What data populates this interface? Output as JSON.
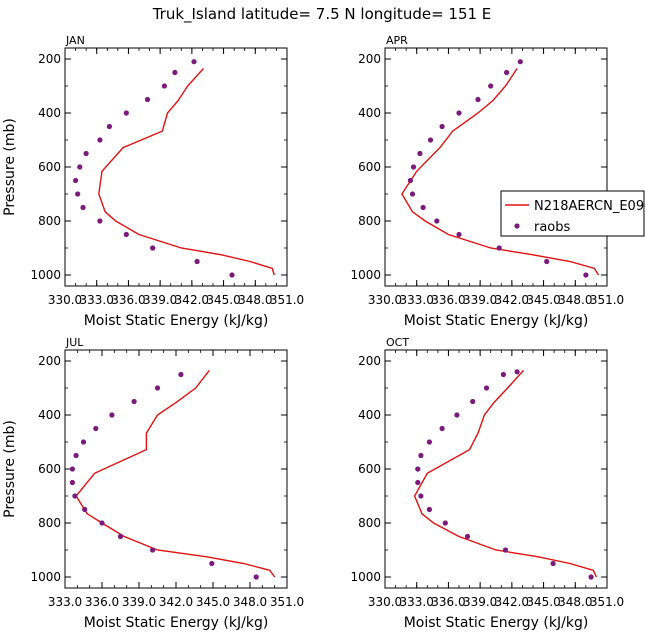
{
  "figure_title": "Truk_Island   latitude= 7.5 N longitude= 151 E",
  "colors": {
    "model": "#e01010",
    "obs": "#7a1a7a",
    "axis": "#000000"
  },
  "legend": {
    "model": "N218AERCN_E09",
    "obs": "raobs"
  },
  "chart_data": [
    {
      "type": "line",
      "title": "JAN",
      "xlabel": "Moist Static Energy (kJ/kg)",
      "ylabel": "Pressure (mb)",
      "xlim": [
        330,
        351
      ],
      "ylim": [
        1000,
        200
      ],
      "xticks": [
        "330.0",
        "333.0",
        "336.0",
        "339.0",
        "342.0",
        "345.0",
        "348.0",
        "351.0"
      ],
      "yticks": [
        "200",
        "400",
        "600",
        "800",
        "1000"
      ],
      "series": [
        {
          "name": "N218AERCN_E09",
          "x": [
            349.8,
            349.6,
            347.5,
            344.8,
            341.0,
            337.0,
            334.8,
            333.8,
            333.2,
            333.5,
            335.5,
            339.2,
            339.7,
            340.7,
            341.6,
            343.1
          ],
          "y": [
            1000,
            975,
            950,
            925,
            900,
            850,
            800,
            766,
            700,
            616,
            528,
            467,
            400,
            354,
            300,
            235
          ]
        },
        {
          "name": "raobs",
          "x": [
            345.8,
            342.5,
            338.3,
            335.8,
            333.3,
            331.7,
            331.2,
            331.0,
            331.4,
            332.0,
            333.3,
            334.2,
            335.8,
            337.8,
            339.4,
            340.4,
            342.2
          ],
          "y": [
            1000,
            950,
            900,
            850,
            800,
            750,
            700,
            650,
            600,
            550,
            500,
            450,
            400,
            350,
            300,
            250,
            210
          ]
        }
      ]
    },
    {
      "type": "line",
      "title": "APR",
      "xlabel": "Moist Static Energy (kJ/kg)",
      "ylabel": "",
      "xlim": [
        330,
        351
      ],
      "ylim": [
        1000,
        200
      ],
      "xticks": [
        "330.0",
        "333.0",
        "336.0",
        "339.0",
        "342.0",
        "345.0",
        "348.0",
        "351.0"
      ],
      "yticks": [
        "200",
        "400",
        "600",
        "800",
        "1000"
      ],
      "legend_location": "right",
      "series": [
        {
          "name": "N218AERCN_E09",
          "x": [
            350.2,
            349.8,
            347.5,
            344.0,
            340.0,
            336.0,
            333.8,
            332.6,
            331.6,
            333.0,
            335.2,
            336.4,
            338.8,
            340.2,
            341.4,
            342.5
          ],
          "y": [
            1000,
            975,
            950,
            925,
            900,
            850,
            800,
            766,
            700,
            616,
            528,
            467,
            400,
            354,
            300,
            235
          ]
        },
        {
          "name": "raobs",
          "x": [
            349.0,
            345.3,
            340.8,
            337.0,
            334.9,
            333.6,
            332.6,
            332.4,
            332.7,
            333.3,
            334.3,
            335.4,
            337.0,
            338.8,
            340.0,
            341.5,
            342.8
          ],
          "y": [
            1000,
            950,
            900,
            850,
            800,
            750,
            700,
            650,
            600,
            550,
            500,
            450,
            400,
            350,
            300,
            250,
            210
          ]
        }
      ]
    },
    {
      "type": "line",
      "title": "JUL",
      "xlabel": "Moist Static Energy (kJ/kg)",
      "ylabel": "Pressure (mb)",
      "xlim": [
        333,
        351
      ],
      "ylim": [
        1000,
        200
      ],
      "xticks": [
        "333.0",
        "336.0",
        "339.0",
        "342.0",
        "345.0",
        "348.0",
        "351.0"
      ],
      "yticks": [
        "200",
        "400",
        "600",
        "800",
        "1000"
      ],
      "series": [
        {
          "name": "N218AERCN_E09",
          "x": [
            350.0,
            349.6,
            347.5,
            344.5,
            340.5,
            337.8,
            336.0,
            334.8,
            333.9,
            335.4,
            339.6,
            339.6,
            340.5,
            342.0,
            343.6,
            344.7
          ],
          "y": [
            1000,
            975,
            950,
            925,
            900,
            850,
            800,
            766,
            700,
            616,
            528,
            467,
            400,
            354,
            300,
            235
          ]
        },
        {
          "name": "raobs",
          "x": [
            348.5,
            344.9,
            340.1,
            337.5,
            336.0,
            334.6,
            333.8,
            333.6,
            333.6,
            333.9,
            334.5,
            335.5,
            336.8,
            338.6,
            340.5,
            342.4
          ],
          "y": [
            1000,
            950,
            900,
            850,
            800,
            750,
            700,
            650,
            600,
            550,
            500,
            450,
            400,
            350,
            300,
            250
          ]
        }
      ]
    },
    {
      "type": "line",
      "title": "OCT",
      "xlabel": "Moist Static Energy (kJ/kg)",
      "ylabel": "",
      "xlim": [
        330,
        351
      ],
      "ylim": [
        1000,
        200
      ],
      "xticks": [
        "330.0",
        "333.0",
        "336.0",
        "339.0",
        "342.0",
        "345.0",
        "348.0",
        "351.0"
      ],
      "yticks": [
        "200",
        "400",
        "600",
        "800",
        "1000"
      ],
      "series": [
        {
          "name": "N218AERCN_E09",
          "x": [
            350.0,
            349.7,
            347.5,
            344.5,
            340.5,
            337.0,
            334.6,
            333.5,
            332.8,
            334.0,
            338.0,
            338.8,
            339.4,
            340.3,
            341.6,
            343.1
          ],
          "y": [
            1000,
            975,
            950,
            925,
            900,
            850,
            800,
            766,
            700,
            616,
            528,
            467,
            400,
            354,
            300,
            235
          ]
        },
        {
          "name": "raobs",
          "x": [
            349.5,
            345.9,
            341.4,
            337.8,
            335.7,
            334.2,
            333.4,
            333.1,
            333.1,
            333.4,
            334.2,
            335.4,
            336.8,
            338.3,
            339.6,
            341.2,
            342.5
          ],
          "y": [
            1000,
            950,
            900,
            850,
            800,
            750,
            700,
            650,
            600,
            550,
            500,
            450,
            400,
            350,
            300,
            250,
            240
          ]
        }
      ]
    }
  ]
}
